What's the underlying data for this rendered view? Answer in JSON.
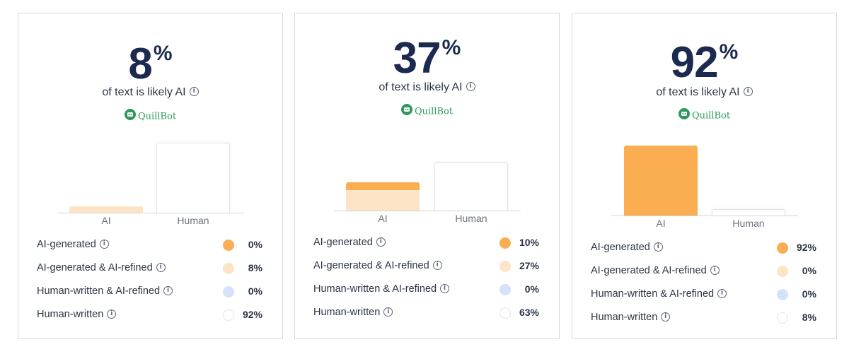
{
  "colors": {
    "ai_generated": "#fbad52",
    "ai_generated_ai_refined": "#fde4c6",
    "human_written_ai_refined": "#d6e2fb",
    "human_written": "#ffffff",
    "brand": "#2e9a5a",
    "score": "#1b2a4e"
  },
  "cards": [
    {
      "score": "8",
      "percent_sign": "%",
      "subtitle": "of text is likely AI",
      "brand": "QuillBot",
      "chart": {
        "ai_label": "AI",
        "human_label": "Human",
        "ai_bar": {
          "ai_generated": 0,
          "ai_generated_ai_refined": 8
        },
        "human_bar": {
          "human_written_ai_refined": 0,
          "human_written": 92
        }
      },
      "legend": [
        {
          "label": "AI-generated",
          "value": "0%",
          "key": "ai_generated"
        },
        {
          "label": "AI-generated & AI-refined",
          "value": "8%",
          "key": "ai_generated_ai_refined"
        },
        {
          "label": "Human-written & AI-refined",
          "value": "0%",
          "key": "human_written_ai_refined"
        },
        {
          "label": "Human-written",
          "value": "92%",
          "key": "human_written"
        }
      ]
    },
    {
      "score": "37",
      "percent_sign": "%",
      "subtitle": "of text is likely AI",
      "brand": "QuillBot",
      "chart": {
        "ai_label": "AI",
        "human_label": "Human",
        "ai_bar": {
          "ai_generated": 10,
          "ai_generated_ai_refined": 27
        },
        "human_bar": {
          "human_written_ai_refined": 0,
          "human_written": 63
        }
      },
      "legend": [
        {
          "label": "AI-generated",
          "value": "10%",
          "key": "ai_generated"
        },
        {
          "label": "AI-generated & AI-refined",
          "value": "27%",
          "key": "ai_generated_ai_refined"
        },
        {
          "label": "Human-written & AI-refined",
          "value": "0%",
          "key": "human_written_ai_refined"
        },
        {
          "label": "Human-written",
          "value": "63%",
          "key": "human_written"
        }
      ]
    },
    {
      "score": "92",
      "percent_sign": "%",
      "subtitle": "of text is likely AI",
      "brand": "QuillBot",
      "chart": {
        "ai_label": "AI",
        "human_label": "Human",
        "ai_bar": {
          "ai_generated": 92,
          "ai_generated_ai_refined": 0
        },
        "human_bar": {
          "human_written_ai_refined": 0,
          "human_written": 8
        }
      },
      "legend": [
        {
          "label": "AI-generated",
          "value": "92%",
          "key": "ai_generated"
        },
        {
          "label": "AI-generated & AI-refined",
          "value": "0%",
          "key": "ai_generated_ai_refined"
        },
        {
          "label": "Human-written & AI-refined",
          "value": "0%",
          "key": "human_written_ai_refined"
        },
        {
          "label": "Human-written",
          "value": "8%",
          "key": "human_written"
        }
      ]
    }
  ]
}
